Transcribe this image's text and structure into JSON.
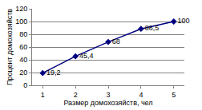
{
  "chart_data": {
    "type": "line",
    "x_label": "Размер домохозяйств, чел",
    "y_label": "Процент домохозяйств",
    "categories": [
      "1",
      "2",
      "3",
      "4",
      "5"
    ],
    "values": [
      19.2,
      45.4,
      68,
      88.5,
      100
    ],
    "value_labels": [
      "19,2",
      "45,4",
      "68",
      "88,5",
      "100"
    ],
    "data_labels": true,
    "color": "#000080",
    "marker": "diamond",
    "line_style": "solid",
    "ylim": [
      0,
      120
    ],
    "yticks": [
      0,
      20,
      40,
      60,
      80,
      100,
      120
    ],
    "grid": true
  }
}
